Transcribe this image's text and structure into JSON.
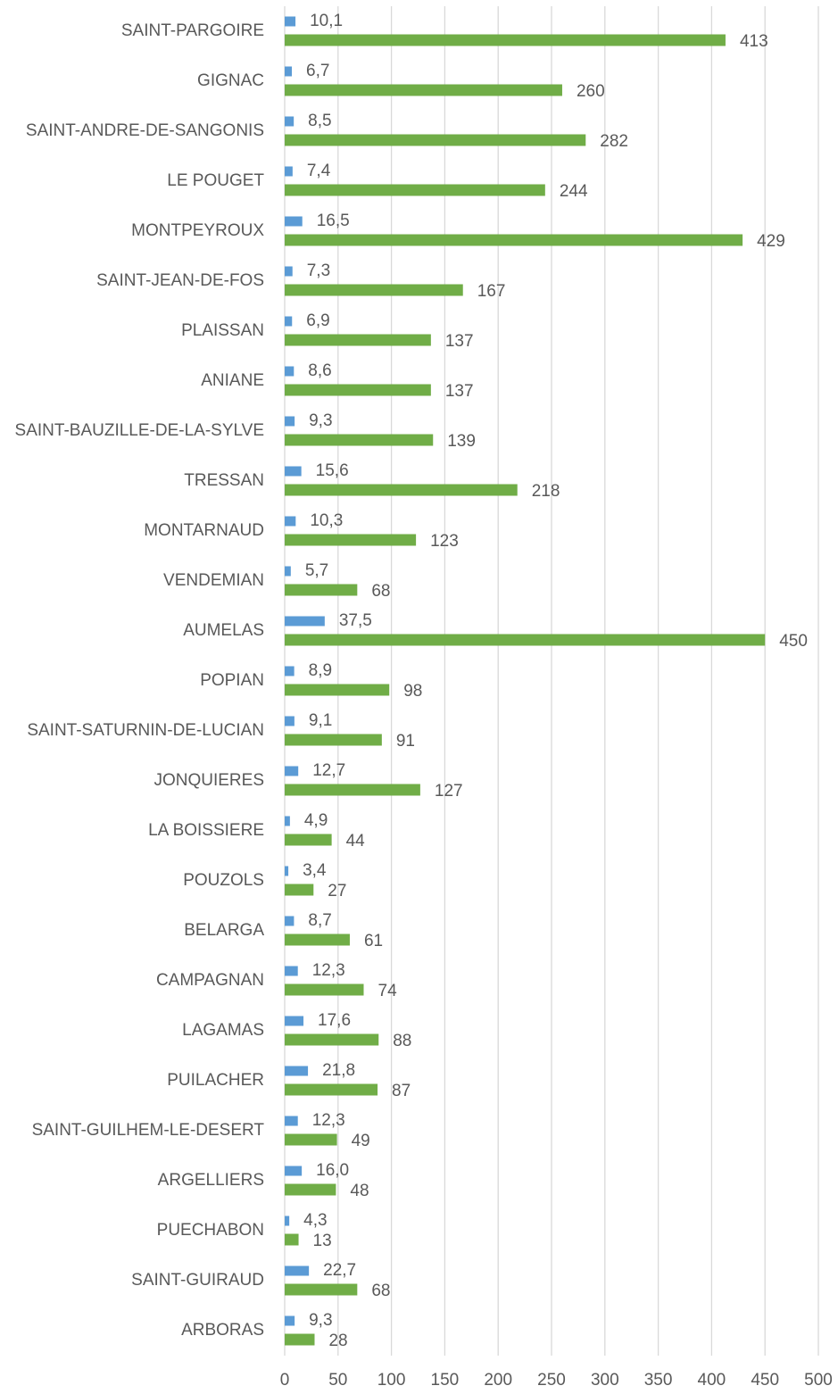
{
  "chart_data": {
    "type": "hbar",
    "categories": [
      "SAINT-PARGOIRE",
      "GIGNAC",
      "SAINT-ANDRE-DE-SANGONIS",
      "LE POUGET",
      "MONTPEYROUX",
      "SAINT-JEAN-DE-FOS",
      "PLAISSAN",
      "ANIANE",
      "SAINT-BAUZILLE-DE-LA-SYLVE",
      "TRESSAN",
      "MONTARNAUD",
      "VENDEMIAN",
      "AUMELAS",
      "POPIAN",
      "SAINT-SATURNIN-DE-LUCIAN",
      "JONQUIERES",
      "LA BOISSIERE",
      "POUZOLS",
      "BELARGA",
      "CAMPAGNAN",
      "LAGAMAS",
      "PUILACHER",
      "SAINT-GUILHEM-LE-DESERT",
      "ARGELLIERS",
      "PUECHABON",
      "SAINT-GUIRAUD",
      "ARBORAS"
    ],
    "series": [
      {
        "color": "#5b9bd5",
        "values": [
          10.1,
          6.7,
          8.5,
          7.4,
          16.5,
          7.3,
          6.9,
          8.6,
          9.3,
          15.6,
          10.3,
          5.7,
          37.5,
          8.9,
          9.1,
          12.7,
          4.9,
          3.4,
          8.7,
          12.3,
          17.6,
          21.8,
          12.3,
          16.0,
          4.3,
          22.7,
          9.3
        ],
        "value_labels": [
          "10,1",
          "6,7",
          "8,5",
          "7,4",
          "16,5",
          "7,3",
          "6,9",
          "8,6",
          "9,3",
          "15,6",
          "10,3",
          "5,7",
          "37,5",
          "8,9",
          "9,1",
          "12,7",
          "4,9",
          "3,4",
          "8,7",
          "12,3",
          "17,6",
          "21,8",
          "12,3",
          "16,0",
          "4,3",
          "22,7",
          "9,3"
        ]
      },
      {
        "color": "#70ad47",
        "values": [
          413,
          260,
          282,
          244,
          429,
          167,
          137,
          137,
          139,
          218,
          123,
          68,
          450,
          98,
          91,
          127,
          44,
          27,
          61,
          74,
          88,
          87,
          49,
          48,
          13,
          68,
          28
        ]
      }
    ],
    "xlim": [
      0,
      500
    ],
    "xticks": [
      0,
      50,
      100,
      150,
      200,
      250,
      300,
      350,
      400,
      450,
      500
    ],
    "grid": true
  }
}
